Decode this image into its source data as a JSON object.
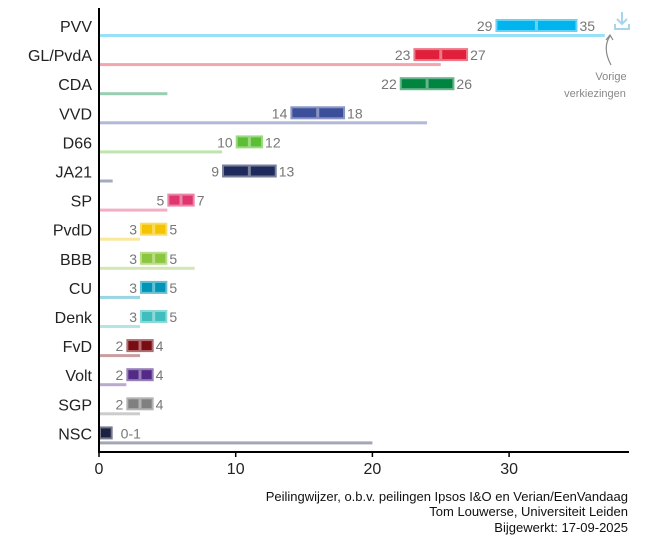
{
  "chart_data": {
    "type": "range-bar",
    "title": "",
    "xlabel": "",
    "ylabel": "",
    "xlim": [
      0,
      38.7
    ],
    "xticks": [
      "0",
      "10",
      "20",
      "30"
    ],
    "xtick_values": [
      0,
      10,
      20,
      30
    ],
    "legend_note": "Vorige verkiezingen",
    "parties": [
      {
        "name": "PVV",
        "low": 29,
        "high": 35,
        "low_label": "29",
        "high_label": "35",
        "previous": 37,
        "color": "#00b4f0"
      },
      {
        "name": "GL/PvdA",
        "low": 23,
        "high": 27,
        "low_label": "23",
        "high_label": "27",
        "previous": 25,
        "color": "#e01f3a"
      },
      {
        "name": "CDA",
        "low": 22,
        "high": 26,
        "low_label": "22",
        "high_label": "26",
        "previous": 5,
        "color": "#00843f"
      },
      {
        "name": "VVD",
        "low": 14,
        "high": 18,
        "low_label": "14",
        "high_label": "18",
        "previous": 24,
        "color": "#3b4f9b"
      },
      {
        "name": "D66",
        "low": 10,
        "high": 12,
        "low_label": "10",
        "high_label": "12",
        "previous": 9,
        "color": "#5cbf33"
      },
      {
        "name": "JA21",
        "low": 9,
        "high": 13,
        "low_label": "9",
        "high_label": "13",
        "previous": 1,
        "color": "#1f2b5c"
      },
      {
        "name": "SP",
        "low": 5,
        "high": 7,
        "low_label": "5",
        "high_label": "7",
        "previous": 5,
        "color": "#e0356f"
      },
      {
        "name": "PvdD",
        "low": 3,
        "high": 5,
        "low_label": "3",
        "high_label": "5",
        "previous": 3,
        "color": "#f5c400"
      },
      {
        "name": "BBB",
        "low": 3,
        "high": 5,
        "low_label": "3",
        "high_label": "5",
        "previous": 7,
        "color": "#8cc63e"
      },
      {
        "name": "CU",
        "low": 3,
        "high": 5,
        "low_label": "3",
        "high_label": "5",
        "previous": 3,
        "color": "#0095b6"
      },
      {
        "name": "Denk",
        "low": 3,
        "high": 5,
        "low_label": "3",
        "high_label": "5",
        "previous": 3,
        "color": "#40bdbd"
      },
      {
        "name": "FvD",
        "low": 2,
        "high": 4,
        "low_label": "2",
        "high_label": "4",
        "previous": 3,
        "color": "#7a0d14"
      },
      {
        "name": "Volt",
        "low": 2,
        "high": 4,
        "low_label": "2",
        "high_label": "4",
        "previous": 2,
        "color": "#532a87"
      },
      {
        "name": "SGP",
        "low": 2,
        "high": 4,
        "low_label": "2",
        "high_label": "4",
        "previous": 3,
        "color": "#808080"
      },
      {
        "name": "NSC",
        "low": 0,
        "high": 1,
        "low_label": "",
        "high_label": "0-1",
        "previous": 20,
        "color": "#1b2140"
      }
    ]
  },
  "footer": {
    "line1": "Peilingwijzer, o.b.v. peilingen Ipsos I&O en Verian/EenVandaag",
    "line2": "Tom Louwerse, Universiteit Leiden",
    "line3": "Bijgewerkt: 17-09-2025"
  },
  "note": {
    "line1": "Vorige",
    "line2": "verkiezingen"
  }
}
